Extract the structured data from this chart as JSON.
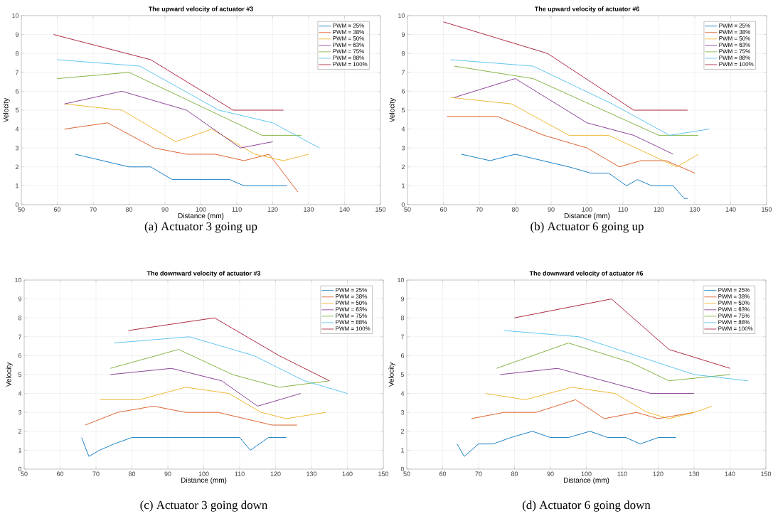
{
  "chart_data": [
    {
      "type": "line",
      "title": "The upward velocity of actuator #3",
      "xlabel": "Distance (mm)",
      "ylabel": "Velocity",
      "annotations": [
        "(a) Actuator 3 going up"
      ],
      "xlim": [
        50,
        150
      ],
      "ylim": [
        0,
        10
      ],
      "xticks": [
        50,
        60,
        70,
        80,
        90,
        100,
        110,
        120,
        130,
        140,
        150
      ],
      "yticks": [
        0,
        1,
        2,
        3,
        4,
        5,
        6,
        7,
        8,
        9,
        10
      ],
      "grid": true,
      "legend": "top right",
      "series": [
        {
          "name": "PWM = 25%",
          "color": "#0072bd",
          "x": [
            65,
            80,
            86,
            92,
            108,
            112,
            124
          ],
          "values": [
            2.67,
            2,
            2,
            1.33,
            1.33,
            1,
            1
          ]
        },
        {
          "name": "PWM = 38%",
          "color": "#d95319",
          "x": [
            62,
            74,
            87,
            96,
            104,
            112,
            119,
            127
          ],
          "values": [
            4,
            4.33,
            3,
            2.67,
            2.67,
            2.33,
            2.67,
            0.67
          ]
        },
        {
          "name": "PWM = 50%",
          "color": "#edb120",
          "x": [
            62,
            78,
            93,
            103,
            115,
            123,
            130
          ],
          "values": [
            5.33,
            5,
            3.33,
            4,
            2.67,
            2.33,
            2.67
          ]
        },
        {
          "name": "PWM = 63%",
          "color": "#7e2f8e",
          "x": [
            62,
            78,
            96,
            111,
            120
          ],
          "values": [
            5.33,
            6,
            5,
            3,
            3.33
          ]
        },
        {
          "name": "PWM = 75%",
          "color": "#77ac30",
          "x": [
            60,
            80,
            117,
            128
          ],
          "values": [
            6.67,
            7,
            3.67,
            3.67
          ]
        },
        {
          "name": "PWM = 88%",
          "color": "#4dbeee",
          "x": [
            60,
            83,
            105,
            120,
            133
          ],
          "values": [
            7.67,
            7.33,
            5,
            4.33,
            3
          ]
        },
        {
          "name": "PWM = 100%",
          "color": "#a2142f",
          "x": [
            59,
            86,
            109,
            123
          ],
          "values": [
            9,
            7.67,
            5,
            5
          ]
        }
      ]
    },
    {
      "type": "line",
      "title": "The upward velocity of actuator #6",
      "xlabel": "Distance (mm)",
      "ylabel": "Velocity",
      "annotations": [
        "(b) Actuator 6 going up"
      ],
      "xlim": [
        50,
        150
      ],
      "ylim": [
        0,
        10
      ],
      "xticks": [
        50,
        60,
        70,
        80,
        90,
        100,
        110,
        120,
        130,
        140,
        150
      ],
      "yticks": [
        0,
        1,
        2,
        3,
        4,
        5,
        6,
        7,
        8,
        9,
        10
      ],
      "grid": true,
      "legend": "top right",
      "series": [
        {
          "name": "PWM = 25%",
          "color": "#0072bd",
          "x": [
            65,
            73,
            80,
            95,
            101,
            106,
            111,
            114,
            118,
            124,
            127,
            128
          ],
          "values": [
            2.67,
            2.33,
            2.67,
            2,
            1.67,
            1.67,
            1,
            1.33,
            1,
            1,
            0.33,
            0.33
          ]
        },
        {
          "name": "PWM = 38%",
          "color": "#d95319",
          "x": [
            61,
            75,
            88,
            100,
            109,
            115,
            122,
            130
          ],
          "values": [
            4.67,
            4.67,
            3.67,
            3,
            2,
            2.33,
            2.33,
            1.67
          ]
        },
        {
          "name": "PWM = 50%",
          "color": "#edb120",
          "x": [
            62,
            79,
            95,
            106,
            125,
            131
          ],
          "values": [
            5.67,
            5.33,
            3.67,
            3.67,
            2,
            2.67
          ]
        },
        {
          "name": "PWM = 63%",
          "color": "#7e2f8e",
          "x": [
            63,
            80,
            100,
            113,
            124
          ],
          "values": [
            5.67,
            6.67,
            4.33,
            3.67,
            2.67
          ]
        },
        {
          "name": "PWM = 75%",
          "color": "#77ac30",
          "x": [
            63,
            85,
            120,
            131
          ],
          "values": [
            7.33,
            6.67,
            3.67,
            3.67
          ]
        },
        {
          "name": "PWM = 88%",
          "color": "#4dbeee",
          "x": [
            62,
            85,
            107,
            123,
            134
          ],
          "values": [
            7.67,
            7.33,
            5.33,
            3.67,
            4
          ]
        },
        {
          "name": "PWM = 100%",
          "color": "#a2142f",
          "x": [
            60,
            89,
            113,
            128
          ],
          "values": [
            9.67,
            8,
            5,
            5
          ]
        }
      ]
    },
    {
      "type": "line",
      "title": "The downward velocity of actuator #3",
      "xlabel": "Distance (mm)",
      "ylabel": "Velocity",
      "annotations": [
        "(c) Actuator 3 going down"
      ],
      "xlim": [
        50,
        150
      ],
      "ylim": [
        0,
        10
      ],
      "xticks": [
        50,
        60,
        70,
        80,
        90,
        100,
        110,
        120,
        130,
        140,
        150
      ],
      "yticks": [
        0,
        1,
        2,
        3,
        4,
        5,
        6,
        7,
        8,
        9,
        10
      ],
      "grid": true,
      "legend": "top right",
      "series": [
        {
          "name": "PWM = 25%",
          "color": "#0072bd",
          "x": [
            66,
            68,
            71,
            75,
            80,
            110,
            113,
            118,
            123
          ],
          "values": [
            1.67,
            0.67,
            1,
            1.33,
            1.67,
            1.67,
            1,
            1.67,
            1.67
          ]
        },
        {
          "name": "PWM = 38%",
          "color": "#d95319",
          "x": [
            67,
            76,
            86,
            95,
            104,
            119,
            126
          ],
          "values": [
            2.33,
            3,
            3.33,
            3,
            3,
            2.33,
            2.33
          ]
        },
        {
          "name": "PWM = 50%",
          "color": "#edb120",
          "x": [
            71,
            82,
            95,
            107,
            116,
            123,
            134
          ],
          "values": [
            3.67,
            3.67,
            4.33,
            4,
            3,
            2.67,
            3
          ]
        },
        {
          "name": "PWM = 63%",
          "color": "#7e2f8e",
          "x": [
            74,
            91,
            105,
            115,
            127
          ],
          "values": [
            5,
            5.33,
            4.67,
            3.33,
            4
          ]
        },
        {
          "name": "PWM = 75%",
          "color": "#77ac30",
          "x": [
            74,
            93,
            108,
            121,
            135
          ],
          "values": [
            5.33,
            6.33,
            5,
            4.33,
            4.67
          ]
        },
        {
          "name": "PWM = 88%",
          "color": "#4dbeee",
          "x": [
            75,
            96,
            114,
            128,
            140
          ],
          "values": [
            6.67,
            7,
            6,
            4.67,
            4
          ]
        },
        {
          "name": "PWM = 100%",
          "color": "#a2142f",
          "x": [
            79,
            103,
            121,
            135
          ],
          "values": [
            7.33,
            8,
            6,
            4.67
          ]
        }
      ]
    },
    {
      "type": "line",
      "title": "The downward velocity of actuator #6",
      "xlabel": "Distance (mm)",
      "ylabel": "Velocity",
      "annotations": [
        "(d) Actuator 6 going down"
      ],
      "xlim": [
        50,
        150
      ],
      "ylim": [
        0,
        10
      ],
      "xticks": [
        50,
        60,
        70,
        80,
        90,
        100,
        110,
        120,
        130,
        140,
        150
      ],
      "yticks": [
        0,
        1,
        2,
        3,
        4,
        5,
        6,
        7,
        8,
        9,
        10
      ],
      "grid": true,
      "legend": "top right",
      "series": [
        {
          "name": "PWM = 25%",
          "color": "#0072bd",
          "x": [
            64,
            66,
            70,
            74,
            79,
            85,
            90,
            95,
            101,
            106,
            111,
            115,
            120,
            125
          ],
          "values": [
            1.33,
            0.67,
            1.33,
            1.33,
            1.67,
            2,
            1.67,
            1.67,
            2,
            1.67,
            1.67,
            1.33,
            1.67,
            1.67
          ]
        },
        {
          "name": "PWM = 38%",
          "color": "#d95319",
          "x": [
            68,
            77,
            86,
            97,
            105,
            114,
            120,
            130
          ],
          "values": [
            2.67,
            3,
            3,
            3.67,
            2.67,
            3,
            2.67,
            3
          ]
        },
        {
          "name": "PWM = 50%",
          "color": "#edb120",
          "x": [
            72,
            83,
            96,
            108,
            117,
            123,
            130,
            135
          ],
          "values": [
            4,
            3.67,
            4.33,
            4,
            3,
            2.67,
            3,
            3.33
          ]
        },
        {
          "name": "PWM = 63%",
          "color": "#7e2f8e",
          "x": [
            76,
            92,
            118,
            130
          ],
          "values": [
            5,
            5.33,
            4,
            4
          ]
        },
        {
          "name": "PWM = 75%",
          "color": "#77ac30",
          "x": [
            75,
            95,
            112,
            123,
            140
          ],
          "values": [
            5.33,
            6.67,
            5.67,
            4.67,
            5
          ]
        },
        {
          "name": "PWM = 88%",
          "color": "#4dbeee",
          "x": [
            77,
            98,
            114,
            130,
            145
          ],
          "values": [
            7.33,
            7,
            6,
            5,
            4.67
          ]
        },
        {
          "name": "PWM = 100%",
          "color": "#a2142f",
          "x": [
            80,
            107,
            123,
            140
          ],
          "values": [
            8,
            9,
            6.33,
            5.33
          ]
        }
      ]
    }
  ]
}
